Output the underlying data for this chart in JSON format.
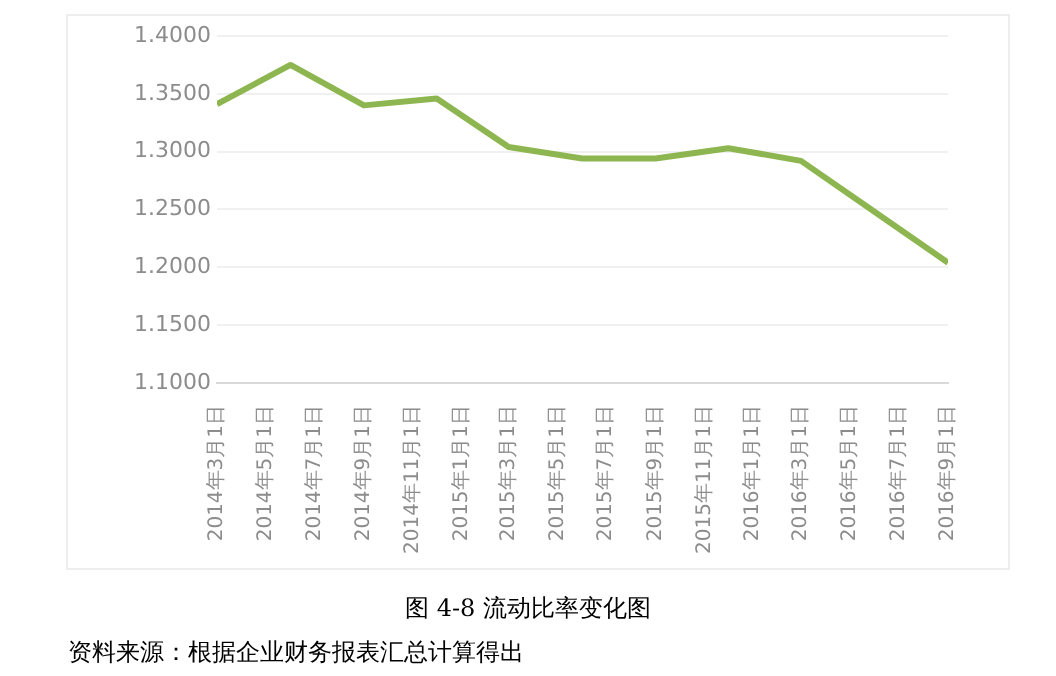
{
  "chart_data": {
    "type": "line",
    "title": "图 4-8   流动比率变化图",
    "annotations": [
      "资料来源：根据企业财务报表汇总计算得出"
    ],
    "x": [
      "2014-03-01",
      "2014-06-01",
      "2014-09-01",
      "2014-12-01",
      "2015-03-01",
      "2015-06-01",
      "2015-09-01",
      "2015-12-01",
      "2016-03-01",
      "2016-06-01",
      "2016-09-01"
    ],
    "series": [
      {
        "color": "#8db650",
        "values": [
          1.341,
          1.375,
          1.34,
          1.346,
          1.304,
          1.294,
          1.294,
          1.303,
          1.292,
          1.248,
          1.204
        ]
      }
    ],
    "xlim": [
      "2014-03-01",
      "2016-09-01"
    ],
    "xticks": [
      {
        "value": "2014-03-01",
        "label": "2014年3月1日"
      },
      {
        "value": "2014-05-01",
        "label": "2014年5月1日"
      },
      {
        "value": "2014-07-01",
        "label": "2014年7月1日"
      },
      {
        "value": "2014-09-01",
        "label": "2014年9月1日"
      },
      {
        "value": "2014-11-01",
        "label": "2014年11月1日"
      },
      {
        "value": "2015-01-01",
        "label": "2015年1月1日"
      },
      {
        "value": "2015-03-01",
        "label": "2015年3月1日"
      },
      {
        "value": "2015-05-01",
        "label": "2015年5月1日"
      },
      {
        "value": "2015-07-01",
        "label": "2015年7月1日"
      },
      {
        "value": "2015-09-01",
        "label": "2015年9月1日"
      },
      {
        "value": "2015-11-01",
        "label": "2015年11月1日"
      },
      {
        "value": "2016-01-01",
        "label": "2016年1月1日"
      },
      {
        "value": "2016-03-01",
        "label": "2016年3月1日"
      },
      {
        "value": "2016-05-01",
        "label": "2016年5月1日"
      },
      {
        "value": "2016-07-01",
        "label": "2016年7月1日"
      },
      {
        "value": "2016-09-01",
        "label": "2016年9月1日"
      }
    ],
    "ylim": [
      1.1,
      1.4
    ],
    "yticks": [
      {
        "value": 1.1,
        "label": "1.1000"
      },
      {
        "value": 1.15,
        "label": "1.1500"
      },
      {
        "value": 1.2,
        "label": "1.2000"
      },
      {
        "value": 1.25,
        "label": "1.2500"
      },
      {
        "value": 1.3,
        "label": "1.3000"
      },
      {
        "value": 1.35,
        "label": "1.3500"
      },
      {
        "value": 1.4,
        "label": "1.4000"
      }
    ],
    "grid": "y",
    "marker": "none",
    "line_style": "solid",
    "legend": false
  }
}
